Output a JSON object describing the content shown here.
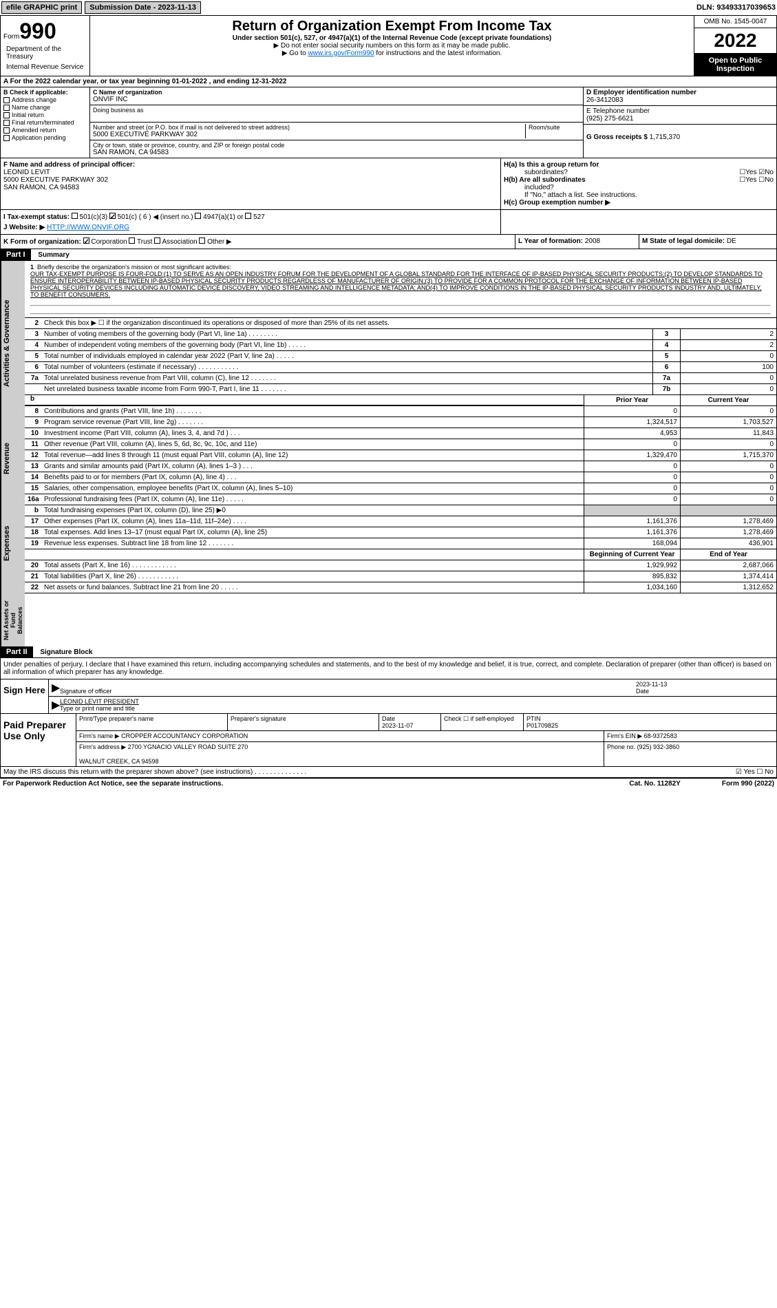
{
  "topbar": {
    "efile_label": "efile GRAPHIC print",
    "submission_btn": "Submission Date - 2023-11-13",
    "dln": "DLN: 93493317039653"
  },
  "header": {
    "form_label": "Form",
    "form_number": "990",
    "title": "Return of Organization Exempt From Income Tax",
    "subtitle": "Under section 501(c), 527, or 4947(a)(1) of the Internal Revenue Code (except private foundations)",
    "note1": "▶ Do not enter social security numbers on this form as it may be made public.",
    "note2_pre": "▶ Go to ",
    "note2_link": "www.irs.gov/Form990",
    "note2_post": " for instructions and the latest information.",
    "dept": "Department of the Treasury",
    "irs": "Internal Revenue Service",
    "omb": "OMB No. 1545-0047",
    "year": "2022",
    "inspection": "Open to Public Inspection"
  },
  "line_a": "For the 2022 calendar year, or tax year beginning 01-01-2022   , and ending 12-31-2022",
  "col_b": {
    "header": "B Check if applicable:",
    "items": [
      "Address change",
      "Name change",
      "Initial return",
      "Final return/terminated",
      "Amended return",
      "Application pending"
    ]
  },
  "col_c": {
    "name_label": "C Name of organization",
    "name_val": "ONVIF INC",
    "dba_label": "Doing business as",
    "addr_label": "Number and street (or P.O. box if mail is not delivered to street address)",
    "room_label": "Room/suite",
    "addr_val": "5000 EXECUTIVE PARKWAY 302",
    "city_label": "City or town, state or province, country, and ZIP or foreign postal code",
    "city_val": "SAN RAMON, CA  94583"
  },
  "col_d": {
    "ein_label": "D Employer identification number",
    "ein_val": "26-3412083",
    "tel_label": "E Telephone number",
    "tel_val": "(925) 275-6621",
    "gross_label": "G Gross receipts $",
    "gross_val": "1,715,370"
  },
  "section_f": {
    "label": "F  Name and address of principal officer:",
    "name": "LEONID LEVIT",
    "addr1": "5000 EXECUTIVE PARKWAY 302",
    "addr2": "SAN RAMON, CA  94583"
  },
  "section_h": {
    "ha_label": "H(a)  Is this a group return for",
    "ha_sub": "subordinates?",
    "hb_label": "H(b)  Are all subordinates",
    "hb_sub": "included?",
    "hb_note": "If \"No,\" attach a list. See instructions.",
    "hc_label": "H(c)  Group exemption number ▶"
  },
  "line_i": {
    "label": "I   Tax-exempt status:",
    "opts": [
      "501(c)(3)",
      "501(c) ( 6 ) ◀ (insert no.)",
      "4947(a)(1) or",
      "527"
    ]
  },
  "line_j": {
    "label": "J   Website: ▶",
    "val": "HTTP://WWW.ONVIF.ORG"
  },
  "line_k": "K Form of organization:",
  "line_k_opts": [
    "Corporation",
    "Trust",
    "Association",
    "Other ▶"
  ],
  "line_l": {
    "label": "L Year of formation:",
    "val": "2008"
  },
  "line_m": {
    "label": "M State of legal domicile:",
    "val": "DE"
  },
  "part1": {
    "header": "Part I",
    "title": "Summary",
    "vtabs": [
      "Activities & Governance",
      "Revenue",
      "Expenses",
      "Net Assets or Fund Balances"
    ],
    "line1_label": "Briefly describe the organization's mission or most significant activities:",
    "mission": "OUR TAX-EXEMPT PURPOSE IS FOUR-FOLD:(1) TO SERVE AS AN OPEN INDUSTRY FORUM FOR THE DEVELOPMENT OF A GLOBAL STANDARD FOR THE INTERFACE OF IP-BASED PHYSICAL SECURITY PRODUCTS;(2) TO DEVELOP STANDARDS TO ENSURE INTEROPERABILITY BETWEEN IP-BASED PHYSICAL SECURITY PRODUCTS REGARDLESS OF MANUFACTURER OF ORIGIN;(3) TO PROVIDE FOR A COMMON PROTOCOL FOR THE EXCHANGE OF INFORMATION BETWEEN IP-BASED PHYSICAL SECURITY DEVICES INCLUDING AUTOMATIC DEVICE DISCOVERY, VIDEO STREAMING AND INTELLIGENCE METADATA; AND(4) TO IMPROVE CONDITIONS IN THE IP-BASED PHYSICAL SECURITY PRODUCTS INDUSTRY AND, ULTIMATELY, TO BENEFIT CONSUMERS.",
    "line2": "Check this box ▶ ☐ if the organization discontinued its operations or disposed of more than 25% of its net assets.",
    "gov_lines": [
      {
        "num": "3",
        "text": "Number of voting members of the governing body (Part VI, line 1a)   .   .   .   .   .   .   .   .",
        "box": "3",
        "val": "2"
      },
      {
        "num": "4",
        "text": "Number of independent voting members of the governing body (Part VI, line 1b)  .   .   .   .   .",
        "box": "4",
        "val": "2"
      },
      {
        "num": "5",
        "text": "Total number of individuals employed in calendar year 2022 (Part V, line 2a)   .   .   .   .   .",
        "box": "5",
        "val": "0"
      },
      {
        "num": "6",
        "text": "Total number of volunteers (estimate if necessary)   .   .   .   .   .   .   .   .   .   .   .",
        "box": "6",
        "val": "100"
      },
      {
        "num": "7a",
        "text": "Total unrelated business revenue from Part VIII, column (C), line 12   .   .   .   .   .   .   .",
        "box": "7a",
        "val": "0"
      },
      {
        "num": "",
        "text": "Net unrelated business taxable income from Form 990-T, Part I, line 11   .   .   .   .   .   .   .",
        "box": "7b",
        "val": "0"
      }
    ],
    "col_headers": [
      "Prior Year",
      "Current Year"
    ],
    "rev_lines": [
      {
        "num": "8",
        "text": "Contributions and grants (Part VIII, line 1h)   .   .   .   .   .   .   .",
        "prior": "0",
        "curr": "0"
      },
      {
        "num": "9",
        "text": "Program service revenue (Part VIII, line 2g)   .   .   .   .   .   .   .",
        "prior": "1,324,517",
        "curr": "1,703,527"
      },
      {
        "num": "10",
        "text": "Investment income (Part VIII, column (A), lines 3, 4, and 7d )   .   .   .",
        "prior": "4,953",
        "curr": "11,843"
      },
      {
        "num": "11",
        "text": "Other revenue (Part VIII, column (A), lines 5, 6d, 8c, 9c, 10c, and 11e)",
        "prior": "0",
        "curr": "0"
      },
      {
        "num": "12",
        "text": "Total revenue—add lines 8 through 11 (must equal Part VIII, column (A), line 12)",
        "prior": "1,329,470",
        "curr": "1,715,370"
      }
    ],
    "exp_lines": [
      {
        "num": "13",
        "text": "Grants and similar amounts paid (Part IX, column (A), lines 1–3 )   .   .   .",
        "prior": "0",
        "curr": "0"
      },
      {
        "num": "14",
        "text": "Benefits paid to or for members (Part IX, column (A), line 4)   .   .   .",
        "prior": "0",
        "curr": "0"
      },
      {
        "num": "15",
        "text": "Salaries, other compensation, employee benefits (Part IX, column (A), lines 5–10)",
        "prior": "0",
        "curr": "0"
      },
      {
        "num": "16a",
        "text": "Professional fundraising fees (Part IX, column (A), line 11e)   .   .   .   .   .",
        "prior": "0",
        "curr": "0"
      },
      {
        "num": "b",
        "text": "Total fundraising expenses (Part IX, column (D), line 25) ▶0",
        "prior": "",
        "curr": "",
        "gray": true
      },
      {
        "num": "17",
        "text": "Other expenses (Part IX, column (A), lines 11a–11d, 11f–24e)   .   .   .   .",
        "prior": "1,161,376",
        "curr": "1,278,469"
      },
      {
        "num": "18",
        "text": "Total expenses. Add lines 13–17 (must equal Part IX, column (A), line 25)",
        "prior": "1,161,376",
        "curr": "1,278,469"
      },
      {
        "num": "19",
        "text": "Revenue less expenses. Subtract line 18 from line 12   .   .   .   .   .   .   .",
        "prior": "168,094",
        "curr": "436,901"
      }
    ],
    "net_headers": [
      "Beginning of Current Year",
      "End of Year"
    ],
    "net_lines": [
      {
        "num": "20",
        "text": "Total assets (Part X, line 16)   .   .   .   .   .   .   .   .   .   .   .   .",
        "prior": "1,929,992",
        "curr": "2,687,066"
      },
      {
        "num": "21",
        "text": "Total liabilities (Part X, line 26)   .   .   .   .   .   .   .   .   .   .   .",
        "prior": "895,832",
        "curr": "1,374,414"
      },
      {
        "num": "22",
        "text": "Net assets or fund balances. Subtract line 21 from line 20   .   .   .   .   .",
        "prior": "1,034,160",
        "curr": "1,312,652"
      }
    ]
  },
  "part2": {
    "header": "Part II",
    "title": "Signature Block",
    "declaration": "Under penalties of perjury, I declare that I have examined this return, including accompanying schedules and statements, and to the best of my knowledge and belief, it is true, correct, and complete. Declaration of preparer (other than officer) is based on all information of which preparer has any knowledge.",
    "sign_here": "Sign Here",
    "sig_officer": "Signature of officer",
    "sig_date": "Date",
    "sig_date_val": "2023-11-13",
    "sig_name": "LEONID LEVIT  PRESIDENT",
    "sig_type": "Type or print name and title",
    "paid_label": "Paid Preparer Use Only",
    "prep_name_label": "Print/Type preparer's name",
    "prep_sig_label": "Preparer's signature",
    "prep_date_label": "Date",
    "prep_date_val": "2023-11-07",
    "self_emp": "Check ☐ if self-employed",
    "ptin_label": "PTIN",
    "ptin_val": "P01709825",
    "firm_name_label": "Firm's name    ▶",
    "firm_name_val": "CROPPER ACCOUNTANCY CORPORATION",
    "firm_ein_label": "Firm's EIN ▶",
    "firm_ein_val": "68-9372583",
    "firm_addr_label": "Firm's address ▶",
    "firm_addr_val": "2700 YGNACIO VALLEY ROAD SUITE 270",
    "firm_city": "WALNUT CREEK, CA  94598",
    "firm_phone_label": "Phone no.",
    "firm_phone_val": "(925) 932-3860",
    "discuss": "May the IRS discuss this return with the preparer shown above? (see instructions)   .   .   .   .   .   .   .   .   .   .   .   .   .   .",
    "paperwork": "For Paperwork Reduction Act Notice, see the separate instructions.",
    "cat": "Cat. No. 11282Y",
    "form_footer": "Form 990 (2022)"
  }
}
